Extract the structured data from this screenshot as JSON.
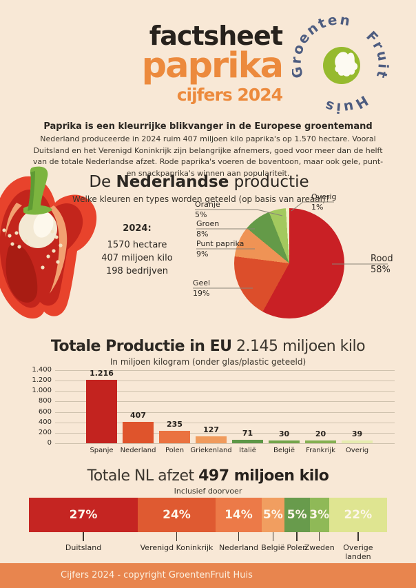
{
  "page": {
    "background": "#f8e8d6",
    "accent_orange": "#ec8a3d",
    "dark": "#27221d"
  },
  "header": {
    "title_line1": "factsheet",
    "title_line2": "paprika",
    "title_line3": "cijfers 2024",
    "logo": {
      "word_top": "Groenten",
      "word_right": "Fruit",
      "word_bottom": "Huis",
      "circle_color": "#96ba2e",
      "text_color": "#4d5c80"
    }
  },
  "intro": {
    "title": "Paprika is een kleurrijke blikvanger in de Europese groentemand",
    "body": "Nederland produceerde in 2024 ruim 407 miljoen kilo paprika's op 1.570 hectare. Vooral Duitsland en het Verenigd Koninkrijk zijn belangrijke afnemers, goed voor meer dan de helft van de totale Nederlandse afzet. Rode paprika's voeren de boventoon, maar ook gele, punt- en snackpaprika's winnen aan populariteit."
  },
  "productie": {
    "title_prefix": "De ",
    "title_bold": "Nederlandse",
    "title_suffix": " productie",
    "subtitle": "Welke kleuren en types worden geteeld (op basis van areaal)?",
    "stats": {
      "year_label": "2024:",
      "line1": "1570 hectare",
      "line2": "407 miljoen kilo",
      "line3": "198 bedrijven"
    }
  },
  "eu_section": {
    "title_bold": "Totale Productie in EU",
    "title_regular": " 2.145 miljoen kilo",
    "subtitle": "In miljoen kilogram (onder glas/plastic geteeld)"
  },
  "afzet_section": {
    "title_regular": "Totale NL afzet ",
    "title_bold": "497 miljoen kilo",
    "subtitle": "Inclusief doorvoer"
  },
  "footer": {
    "text": "Cijfers 2024 - copyright GroentenFruit Huis",
    "background": "#e8854e"
  },
  "chart_data": [
    {
      "type": "pie",
      "title": "De Nederlandse productie",
      "subtitle": "Welke kleuren en types worden geteeld (op basis van areaal)?",
      "start_angle_deg": 0,
      "direction": "clockwise",
      "slices": [
        {
          "label": "Rood",
          "pct": 58,
          "pct_label": "58%",
          "color": "#c92025"
        },
        {
          "label": "Geel",
          "pct": 19,
          "pct_label": "19%",
          "color": "#dc4e2b"
        },
        {
          "label": "Punt paprika",
          "pct": 9,
          "pct_label": "9%",
          "color": "#ef9355"
        },
        {
          "label": "Groen",
          "pct": 8,
          "pct_label": "8%",
          "color": "#649a48"
        },
        {
          "label": "Oranje",
          "pct": 5,
          "pct_label": "5%",
          "color": "#a3c95e"
        },
        {
          "label": "Overig",
          "pct": 1,
          "pct_label": "1%",
          "color": "#eff0c5"
        }
      ]
    },
    {
      "type": "bar",
      "title": "Totale Productie in EU 2.145 miljoen kilo",
      "subtitle": "In miljoen kilogram (onder glas/plastic geteeld)",
      "xlabel": "",
      "ylabel": "miljoen kilogram",
      "ylim": [
        0,
        1400
      ],
      "grid": true,
      "ytick_labels": [
        "1.400",
        "1.200",
        "1.000",
        "800",
        "600",
        "400",
        "200",
        "0"
      ],
      "categories": [
        "Spanje",
        "Nederland",
        "Polen",
        "Griekenland",
        "Italië",
        "België",
        "Frankrijk",
        "Overig"
      ],
      "values": [
        1216,
        407,
        235,
        127,
        71,
        30,
        20,
        39
      ],
      "value_labels": [
        "1.216",
        "407",
        "235",
        "127",
        "71",
        "30",
        "20",
        "39"
      ],
      "colors": [
        "#c3231f",
        "#df542c",
        "#ea7240",
        "#f09b5d",
        "#5d9747",
        "#73a54b",
        "#84b051",
        "#e6ecaf"
      ]
    },
    {
      "type": "stacked-bar",
      "title": "Totale NL afzet 497 miljoen kilo",
      "subtitle": "Inclusief doorvoer",
      "total_pct": 100,
      "segments": [
        {
          "label": "Duitsland",
          "pct": 27,
          "pct_label": "27%",
          "color": "#c52522",
          "display_pct": 30.4,
          "wrap": false
        },
        {
          "label": "Verenigd Koninkrijk",
          "pct": 24,
          "pct_label": "24%",
          "color": "#df5a31",
          "display_pct": 21.7,
          "wrap": false
        },
        {
          "label": "Nederland",
          "pct": 14,
          "pct_label": "14%",
          "color": "#ec7a48",
          "display_pct": 12.9,
          "wrap": false
        },
        {
          "label": "België",
          "pct": 5,
          "pct_label": "5%",
          "color": "#f19e60",
          "display_pct": 6.3,
          "wrap": false
        },
        {
          "label": "Polen",
          "pct": 5,
          "pct_label": "5%",
          "color": "#689b4c",
          "display_pct": 7.1,
          "wrap": false
        },
        {
          "label": "Zweden",
          "pct": 3,
          "pct_label": "3%",
          "color": "#8fb957",
          "display_pct": 5.4,
          "wrap": false
        },
        {
          "label": "Overige landen",
          "pct": 22,
          "pct_label": "22%",
          "color": "#dfe591",
          "display_pct": 16.2,
          "wrap": true
        }
      ]
    }
  ]
}
